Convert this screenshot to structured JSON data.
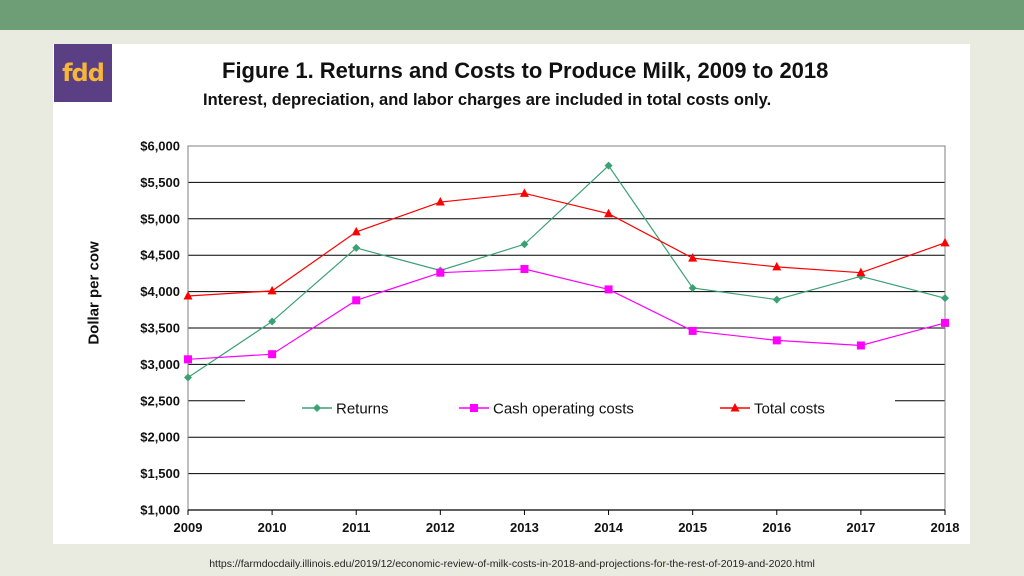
{
  "header": {
    "logo_text": "fdd",
    "logo_color": "#f6b63a",
    "logo_bg": "#5b3f84"
  },
  "source_url": "https://farmdocdaily.illinois.edu/2019/12/economic-review-of-milk-costs-in-2018-and-projections-for-the-rest-of-2019-and-2020.html",
  "chart_data": {
    "type": "line",
    "title": "Figure 1.  Returns and Costs to Produce Milk, 2009 to 2018",
    "subtitle": "Interest, depreciation, and labor charges are included in total costs only.",
    "xlabel": "",
    "ylabel": "Dollar per cow",
    "x": [
      "2009",
      "2010",
      "2011",
      "2012",
      "2013",
      "2014",
      "2015",
      "2016",
      "2017",
      "2018"
    ],
    "ylim": [
      1000,
      6000
    ],
    "yticks": [
      1000,
      1500,
      2000,
      2500,
      3000,
      3500,
      4000,
      4500,
      5000,
      5500,
      6000
    ],
    "ytick_labels": [
      "$1,000",
      "$1,500",
      "$2,000",
      "$2,500",
      "$3,000",
      "$3,500",
      "$4,000",
      "$4,500",
      "$5,000",
      "$5,500",
      "$6,000"
    ],
    "grid": "horizontal",
    "legend_position": "inside-bottom-center",
    "series": [
      {
        "name": "Returns",
        "marker": "diamond",
        "color": "#3aa174",
        "values": [
          2820,
          3590,
          4600,
          4290,
          4650,
          5730,
          4050,
          3890,
          4210,
          3910
        ]
      },
      {
        "name": "Cash operating costs",
        "marker": "square",
        "color": "#ff00ff",
        "values": [
          3070,
          3140,
          3880,
          4260,
          4310,
          4030,
          3460,
          3330,
          3260,
          3570
        ]
      },
      {
        "name": "Total costs",
        "marker": "triangle",
        "color": "#ff0000",
        "values": [
          3940,
          4010,
          4820,
          5230,
          5350,
          5070,
          4460,
          4340,
          4260,
          4670
        ]
      }
    ]
  }
}
